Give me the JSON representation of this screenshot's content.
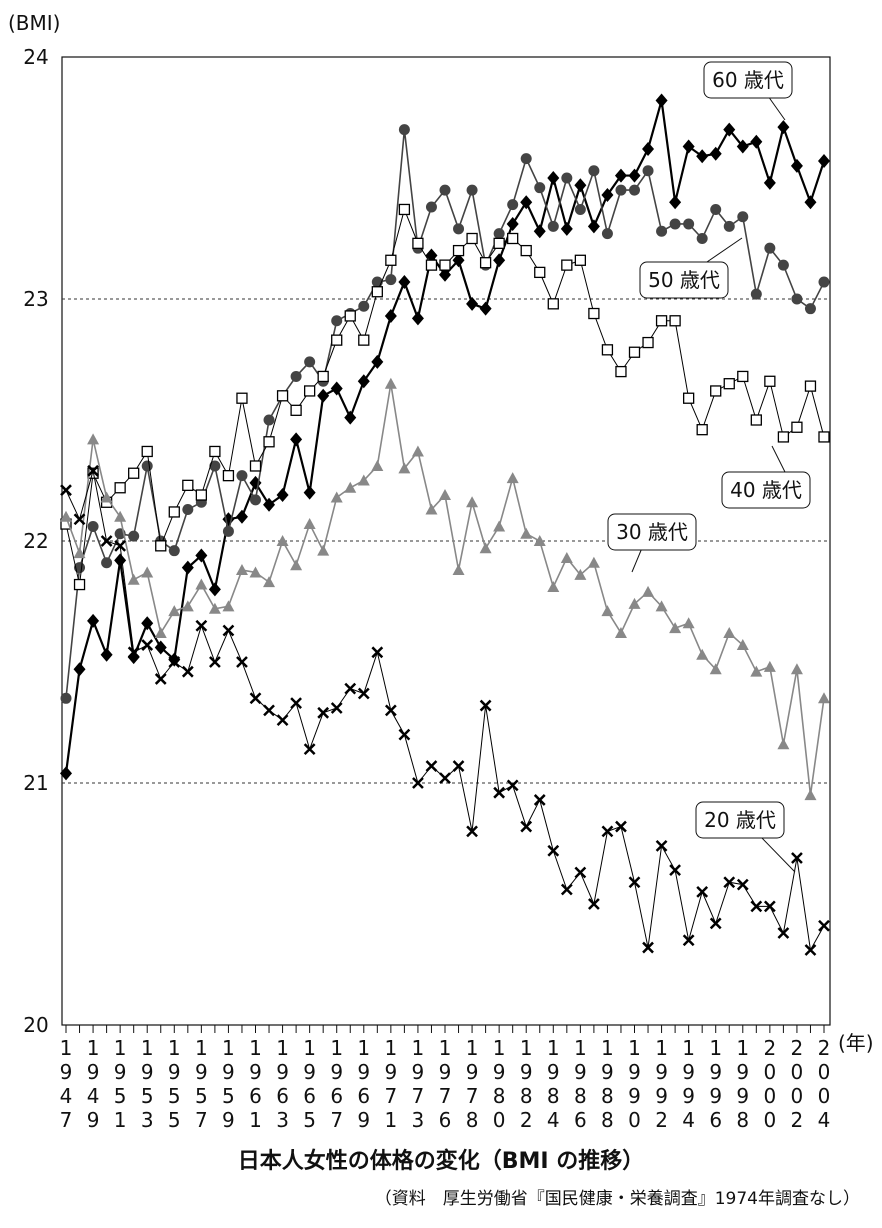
{
  "chart_data": {
    "type": "line",
    "title": "日本人女性の体格の変化（BMI の推移）",
    "source": "（資料　厚生労働省『国民健康・栄養調査』1974年調査なし）",
    "y_label": "(BMI)",
    "x_label": "(年)",
    "categories": [
      "1947",
      null,
      "1949",
      null,
      "1951",
      null,
      "1953",
      null,
      "1955",
      null,
      "1957",
      null,
      "1959",
      null,
      "1961",
      null,
      "1963",
      null,
      "1965",
      null,
      "1967",
      null,
      "1969",
      null,
      "1971",
      null,
      "1973",
      null,
      "1976",
      null,
      "1978",
      null,
      "1980",
      null,
      "1982",
      null,
      "1984",
      null,
      "1986",
      null,
      "1988",
      null,
      "1990",
      null,
      "1992",
      null,
      "1994",
      null,
      "1996",
      null,
      "1998",
      null,
      "2000",
      null,
      "2002",
      null,
      "2004"
    ],
    "ylim": [
      20,
      24
    ],
    "yticks": [
      20,
      21,
      22,
      23,
      24
    ],
    "grid_lines": [
      21,
      22,
      23
    ],
    "series": [
      {
        "name": "60 歳代",
        "color": "#000000",
        "marker": "diamond",
        "values": [
          21.04,
          21.47,
          21.67,
          21.53,
          21.92,
          21.52,
          21.66,
          21.56,
          21.51,
          21.89,
          21.94,
          21.8,
          22.09,
          22.1,
          22.24,
          22.15,
          22.19,
          22.42,
          22.2,
          22.6,
          22.63,
          22.51,
          22.66,
          22.74,
          22.93,
          23.07,
          22.92,
          23.18,
          23.1,
          23.16,
          22.98,
          22.96,
          23.16,
          23.31,
          23.4,
          23.28,
          23.5,
          23.29,
          23.47,
          23.3,
          23.43,
          23.51,
          23.51,
          23.62,
          23.82,
          23.4,
          23.63,
          23.59,
          23.6,
          23.7,
          23.63,
          23.65,
          23.48,
          23.71,
          23.55,
          23.4,
          23.57
        ]
      },
      {
        "name": "50 歳代",
        "color": "#444444",
        "marker": "circle",
        "values": [
          21.35,
          21.89,
          22.06,
          21.91,
          22.03,
          22.02,
          22.31,
          22.0,
          21.96,
          22.13,
          22.16,
          22.31,
          22.04,
          22.27,
          22.17,
          22.5,
          22.6,
          22.68,
          22.74,
          22.66,
          22.91,
          22.94,
          22.97,
          23.07,
          23.08,
          23.7,
          23.21,
          23.38,
          23.45,
          23.29,
          23.45,
          23.14,
          23.27,
          23.39,
          23.58,
          23.46,
          23.3,
          23.5,
          23.37,
          23.53,
          23.27,
          23.45,
          23.45,
          23.53,
          23.28,
          23.31,
          23.31,
          23.25,
          23.37,
          23.3,
          23.34,
          23.02,
          23.21,
          23.14,
          23.0,
          22.96,
          23.07
        ]
      },
      {
        "name": "40 歳代",
        "color": "#000000",
        "marker": "square",
        "values": [
          22.07,
          21.82,
          22.28,
          22.16,
          22.22,
          22.28,
          22.37,
          21.98,
          22.12,
          22.23,
          22.19,
          22.37,
          22.27,
          22.59,
          22.31,
          22.41,
          22.6,
          22.54,
          22.62,
          22.68,
          22.83,
          22.93,
          22.83,
          23.03,
          23.16,
          23.37,
          23.23,
          23.14,
          23.14,
          23.2,
          23.25,
          23.15,
          23.23,
          23.25,
          23.2,
          23.11,
          22.98,
          23.14,
          23.16,
          22.94,
          22.79,
          22.7,
          22.78,
          22.82,
          22.91,
          22.91,
          22.59,
          22.46,
          22.62,
          22.65,
          22.68,
          22.5,
          22.66,
          22.43,
          22.47,
          22.64,
          22.43
        ]
      },
      {
        "name": "30 歳代",
        "color": "#888888",
        "marker": "triangle",
        "values": [
          22.1,
          21.95,
          22.42,
          22.18,
          22.1,
          21.84,
          21.87,
          21.62,
          21.71,
          21.73,
          21.82,
          21.72,
          21.73,
          21.88,
          21.87,
          21.83,
          22.0,
          21.9,
          22.07,
          21.96,
          22.18,
          22.22,
          22.25,
          22.31,
          22.65,
          22.3,
          22.37,
          22.13,
          22.19,
          21.88,
          22.16,
          21.97,
          22.06,
          22.26,
          22.03,
          22.0,
          21.81,
          21.93,
          21.86,
          21.91,
          21.71,
          21.62,
          21.74,
          21.79,
          21.73,
          21.64,
          21.66,
          21.53,
          21.47,
          21.62,
          21.57,
          21.46,
          21.48,
          21.16,
          21.47,
          20.95,
          21.35
        ]
      },
      {
        "name": "20 歳代",
        "color": "#000000",
        "marker": "cross",
        "values": [
          22.21,
          22.09,
          22.29,
          22.0,
          21.98,
          21.54,
          21.57,
          21.43,
          21.5,
          21.46,
          21.65,
          21.5,
          21.63,
          21.5,
          21.35,
          21.3,
          21.26,
          21.33,
          21.14,
          21.29,
          21.31,
          21.39,
          21.37,
          21.54,
          21.3,
          21.2,
          21.0,
          21.07,
          21.02,
          21.07,
          20.8,
          21.32,
          20.96,
          20.99,
          20.82,
          20.93,
          20.72,
          20.56,
          20.63,
          20.5,
          20.8,
          20.82,
          20.59,
          20.32,
          20.74,
          20.64,
          20.35,
          20.55,
          20.42,
          20.59,
          20.58,
          20.49,
          20.49,
          20.38,
          20.69,
          20.31,
          20.41
        ]
      }
    ]
  }
}
